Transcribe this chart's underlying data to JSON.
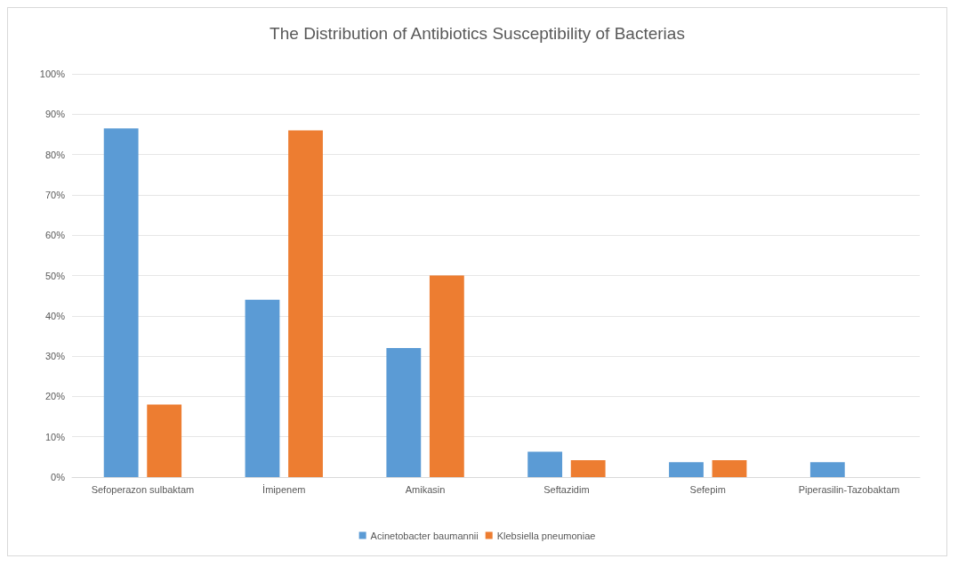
{
  "chart_data": {
    "type": "bar",
    "title": "The Distribution of Antibiotics Susceptibility of Bacterias",
    "categories": [
      "Sefoperazon sulbaktam",
      "İmipenem",
      "Amikasin",
      "Seftazidim",
      "Sefepim",
      "Piperasilin-Tazobaktam"
    ],
    "series": [
      {
        "name": "Acinetobacter baumannii",
        "color": "#5b9bd5",
        "values": [
          86.5,
          44,
          32,
          6.3,
          3.7,
          3.7
        ]
      },
      {
        "name": "Klebsiella pneumoniae",
        "color": "#ed7d31",
        "values": [
          18,
          86,
          50,
          4.2,
          4.2,
          0
        ]
      }
    ],
    "ylim": [
      0,
      100
    ],
    "yticks": [
      {
        "value": 0,
        "label": "0%"
      },
      {
        "value": 10,
        "label": "10%"
      },
      {
        "value": 20,
        "label": "20%"
      },
      {
        "value": 30,
        "label": "30%"
      },
      {
        "value": 40,
        "label": "40%"
      },
      {
        "value": 50,
        "label": "50%"
      },
      {
        "value": 60,
        "label": "60%"
      },
      {
        "value": 70,
        "label": "70%"
      },
      {
        "value": 80,
        "label": "80%"
      },
      {
        "value": 90,
        "label": "90%"
      },
      {
        "value": 100,
        "label": "100%"
      }
    ],
    "grid": "y",
    "legend": "bottom"
  }
}
